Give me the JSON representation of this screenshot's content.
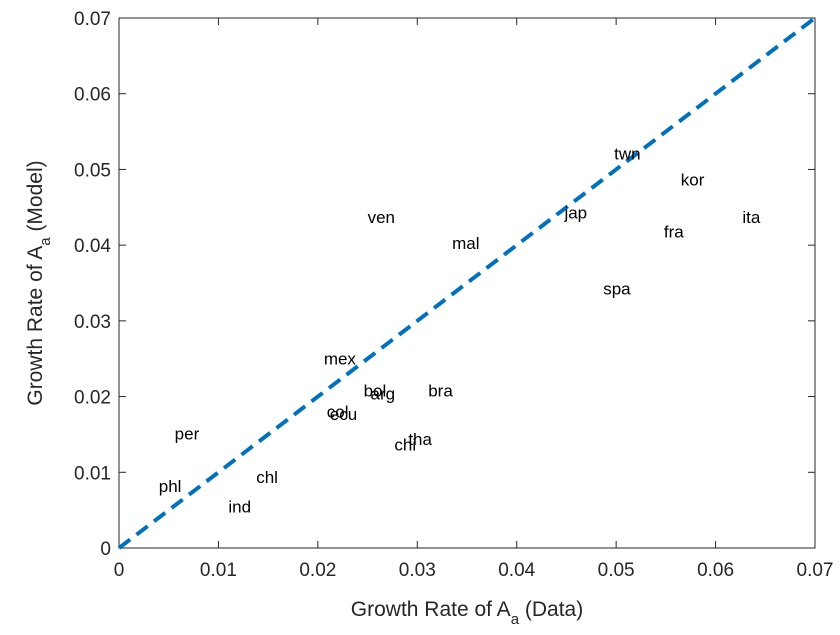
{
  "chart_data": {
    "type": "scatter",
    "xlabel": {
      "main": "Growth Rate of A",
      "sub": "a",
      "tail": " (Data)"
    },
    "ylabel": {
      "main": "Growth Rate of A",
      "sub": "a",
      "tail": " (Model)"
    },
    "xlim": [
      0,
      0.07
    ],
    "ylim": [
      0,
      0.07
    ],
    "xticks": [
      0,
      0.01,
      0.02,
      0.03,
      0.04,
      0.05,
      0.06,
      0.07
    ],
    "yticks": [
      0,
      0.01,
      0.02,
      0.03,
      0.04,
      0.05,
      0.06,
      0.07
    ],
    "xtick_labels": [
      "0",
      "0.01",
      "0.02",
      "0.03",
      "0.04",
      "0.05",
      "0.06",
      "0.07"
    ],
    "ytick_labels": [
      "0",
      "0.01",
      "0.02",
      "0.03",
      "0.04",
      "0.05",
      "0.06",
      "0.07"
    ],
    "grid": false,
    "reference_line": {
      "style": "dashed",
      "color": "#0072BD",
      "from": [
        0,
        0
      ],
      "to": [
        0.07,
        0.07
      ]
    },
    "points": [
      {
        "label": "twn",
        "x": 0.0498,
        "y": 0.0521
      },
      {
        "label": "kor",
        "x": 0.0565,
        "y": 0.0487
      },
      {
        "label": "jap",
        "x": 0.0448,
        "y": 0.0443
      },
      {
        "label": "ita",
        "x": 0.0627,
        "y": 0.0437
      },
      {
        "label": "ven",
        "x": 0.025,
        "y": 0.0437
      },
      {
        "label": "fra",
        "x": 0.0548,
        "y": 0.0418
      },
      {
        "label": "mal",
        "x": 0.0335,
        "y": 0.0403
      },
      {
        "label": "spa",
        "x": 0.0487,
        "y": 0.0343
      },
      {
        "label": "mex",
        "x": 0.0206,
        "y": 0.025
      },
      {
        "label": "bra",
        "x": 0.0311,
        "y": 0.0208
      },
      {
        "label": "bol",
        "x": 0.0246,
        "y": 0.0208
      },
      {
        "label": "arg",
        "x": 0.0253,
        "y": 0.0204
      },
      {
        "label": "col",
        "x": 0.0209,
        "y": 0.018
      },
      {
        "label": "ecu",
        "x": 0.0212,
        "y": 0.0177
      },
      {
        "label": "tha",
        "x": 0.0291,
        "y": 0.0144
      },
      {
        "label": "chi",
        "x": 0.0277,
        "y": 0.0137
      },
      {
        "label": "per",
        "x": 0.0056,
        "y": 0.0151
      },
      {
        "label": "chl",
        "x": 0.0138,
        "y": 0.0094
      },
      {
        "label": "phl",
        "x": 0.004,
        "y": 0.0082
      },
      {
        "label": "ind",
        "x": 0.011,
        "y": 0.0055
      }
    ]
  }
}
